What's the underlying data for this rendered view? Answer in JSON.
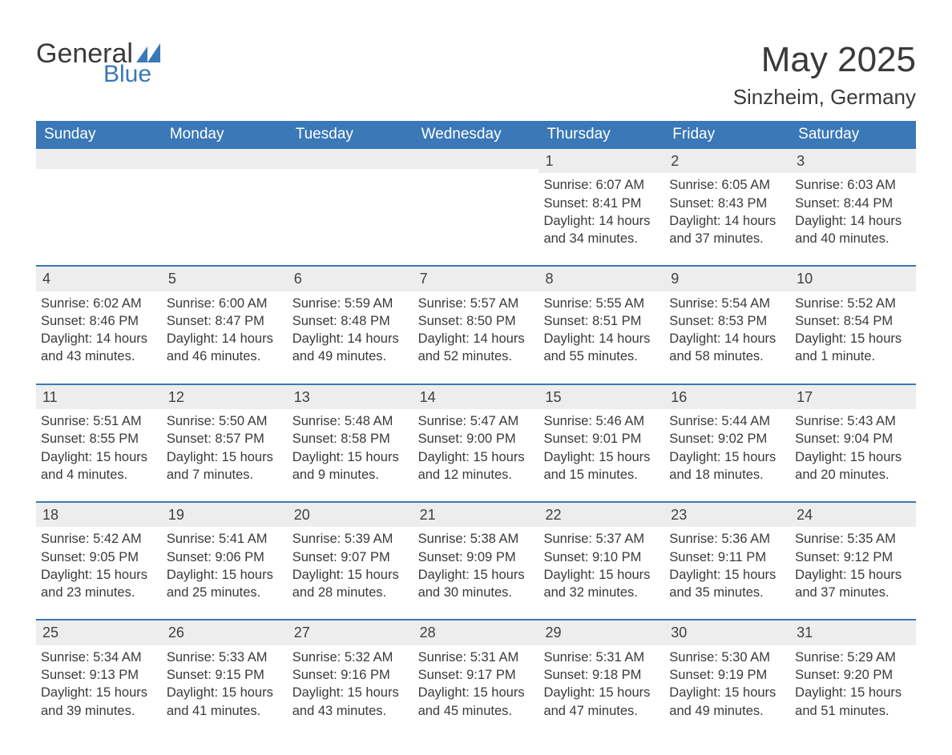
{
  "logo": {
    "word1": "General",
    "word2": "Blue",
    "text_color": "#3a3a3a",
    "accent_color": "#3a78b7"
  },
  "header": {
    "title": "May 2025",
    "location": "Sinzheim, Germany"
  },
  "styling": {
    "header_bg": "#3a78b7",
    "header_text": "#ffffff",
    "daynum_bg": "#ededed",
    "border_color": "#3a78b7",
    "body_text": "#3a3a3a",
    "page_bg": "#ffffff",
    "title_fontsize": 44,
    "location_fontsize": 26,
    "header_fontsize": 19,
    "body_fontsize": 16.5
  },
  "day_headers": [
    "Sunday",
    "Monday",
    "Tuesday",
    "Wednesday",
    "Thursday",
    "Friday",
    "Saturday"
  ],
  "weeks": [
    [
      {
        "empty": true
      },
      {
        "empty": true
      },
      {
        "empty": true
      },
      {
        "empty": true
      },
      {
        "day": "1",
        "sunrise": "Sunrise: 6:07 AM",
        "sunset": "Sunset: 8:41 PM",
        "daylight": "Daylight: 14 hours and 34 minutes."
      },
      {
        "day": "2",
        "sunrise": "Sunrise: 6:05 AM",
        "sunset": "Sunset: 8:43 PM",
        "daylight": "Daylight: 14 hours and 37 minutes."
      },
      {
        "day": "3",
        "sunrise": "Sunrise: 6:03 AM",
        "sunset": "Sunset: 8:44 PM",
        "daylight": "Daylight: 14 hours and 40 minutes."
      }
    ],
    [
      {
        "day": "4",
        "sunrise": "Sunrise: 6:02 AM",
        "sunset": "Sunset: 8:46 PM",
        "daylight": "Daylight: 14 hours and 43 minutes."
      },
      {
        "day": "5",
        "sunrise": "Sunrise: 6:00 AM",
        "sunset": "Sunset: 8:47 PM",
        "daylight": "Daylight: 14 hours and 46 minutes."
      },
      {
        "day": "6",
        "sunrise": "Sunrise: 5:59 AM",
        "sunset": "Sunset: 8:48 PM",
        "daylight": "Daylight: 14 hours and 49 minutes."
      },
      {
        "day": "7",
        "sunrise": "Sunrise: 5:57 AM",
        "sunset": "Sunset: 8:50 PM",
        "daylight": "Daylight: 14 hours and 52 minutes."
      },
      {
        "day": "8",
        "sunrise": "Sunrise: 5:55 AM",
        "sunset": "Sunset: 8:51 PM",
        "daylight": "Daylight: 14 hours and 55 minutes."
      },
      {
        "day": "9",
        "sunrise": "Sunrise: 5:54 AM",
        "sunset": "Sunset: 8:53 PM",
        "daylight": "Daylight: 14 hours and 58 minutes."
      },
      {
        "day": "10",
        "sunrise": "Sunrise: 5:52 AM",
        "sunset": "Sunset: 8:54 PM",
        "daylight": "Daylight: 15 hours and 1 minute."
      }
    ],
    [
      {
        "day": "11",
        "sunrise": "Sunrise: 5:51 AM",
        "sunset": "Sunset: 8:55 PM",
        "daylight": "Daylight: 15 hours and 4 minutes."
      },
      {
        "day": "12",
        "sunrise": "Sunrise: 5:50 AM",
        "sunset": "Sunset: 8:57 PM",
        "daylight": "Daylight: 15 hours and 7 minutes."
      },
      {
        "day": "13",
        "sunrise": "Sunrise: 5:48 AM",
        "sunset": "Sunset: 8:58 PM",
        "daylight": "Daylight: 15 hours and 9 minutes."
      },
      {
        "day": "14",
        "sunrise": "Sunrise: 5:47 AM",
        "sunset": "Sunset: 9:00 PM",
        "daylight": "Daylight: 15 hours and 12 minutes."
      },
      {
        "day": "15",
        "sunrise": "Sunrise: 5:46 AM",
        "sunset": "Sunset: 9:01 PM",
        "daylight": "Daylight: 15 hours and 15 minutes."
      },
      {
        "day": "16",
        "sunrise": "Sunrise: 5:44 AM",
        "sunset": "Sunset: 9:02 PM",
        "daylight": "Daylight: 15 hours and 18 minutes."
      },
      {
        "day": "17",
        "sunrise": "Sunrise: 5:43 AM",
        "sunset": "Sunset: 9:04 PM",
        "daylight": "Daylight: 15 hours and 20 minutes."
      }
    ],
    [
      {
        "day": "18",
        "sunrise": "Sunrise: 5:42 AM",
        "sunset": "Sunset: 9:05 PM",
        "daylight": "Daylight: 15 hours and 23 minutes."
      },
      {
        "day": "19",
        "sunrise": "Sunrise: 5:41 AM",
        "sunset": "Sunset: 9:06 PM",
        "daylight": "Daylight: 15 hours and 25 minutes."
      },
      {
        "day": "20",
        "sunrise": "Sunrise: 5:39 AM",
        "sunset": "Sunset: 9:07 PM",
        "daylight": "Daylight: 15 hours and 28 minutes."
      },
      {
        "day": "21",
        "sunrise": "Sunrise: 5:38 AM",
        "sunset": "Sunset: 9:09 PM",
        "daylight": "Daylight: 15 hours and 30 minutes."
      },
      {
        "day": "22",
        "sunrise": "Sunrise: 5:37 AM",
        "sunset": "Sunset: 9:10 PM",
        "daylight": "Daylight: 15 hours and 32 minutes."
      },
      {
        "day": "23",
        "sunrise": "Sunrise: 5:36 AM",
        "sunset": "Sunset: 9:11 PM",
        "daylight": "Daylight: 15 hours and 35 minutes."
      },
      {
        "day": "24",
        "sunrise": "Sunrise: 5:35 AM",
        "sunset": "Sunset: 9:12 PM",
        "daylight": "Daylight: 15 hours and 37 minutes."
      }
    ],
    [
      {
        "day": "25",
        "sunrise": "Sunrise: 5:34 AM",
        "sunset": "Sunset: 9:13 PM",
        "daylight": "Daylight: 15 hours and 39 minutes."
      },
      {
        "day": "26",
        "sunrise": "Sunrise: 5:33 AM",
        "sunset": "Sunset: 9:15 PM",
        "daylight": "Daylight: 15 hours and 41 minutes."
      },
      {
        "day": "27",
        "sunrise": "Sunrise: 5:32 AM",
        "sunset": "Sunset: 9:16 PM",
        "daylight": "Daylight: 15 hours and 43 minutes."
      },
      {
        "day": "28",
        "sunrise": "Sunrise: 5:31 AM",
        "sunset": "Sunset: 9:17 PM",
        "daylight": "Daylight: 15 hours and 45 minutes."
      },
      {
        "day": "29",
        "sunrise": "Sunrise: 5:31 AM",
        "sunset": "Sunset: 9:18 PM",
        "daylight": "Daylight: 15 hours and 47 minutes."
      },
      {
        "day": "30",
        "sunrise": "Sunrise: 5:30 AM",
        "sunset": "Sunset: 9:19 PM",
        "daylight": "Daylight: 15 hours and 49 minutes."
      },
      {
        "day": "31",
        "sunrise": "Sunrise: 5:29 AM",
        "sunset": "Sunset: 9:20 PM",
        "daylight": "Daylight: 15 hours and 51 minutes."
      }
    ]
  ]
}
